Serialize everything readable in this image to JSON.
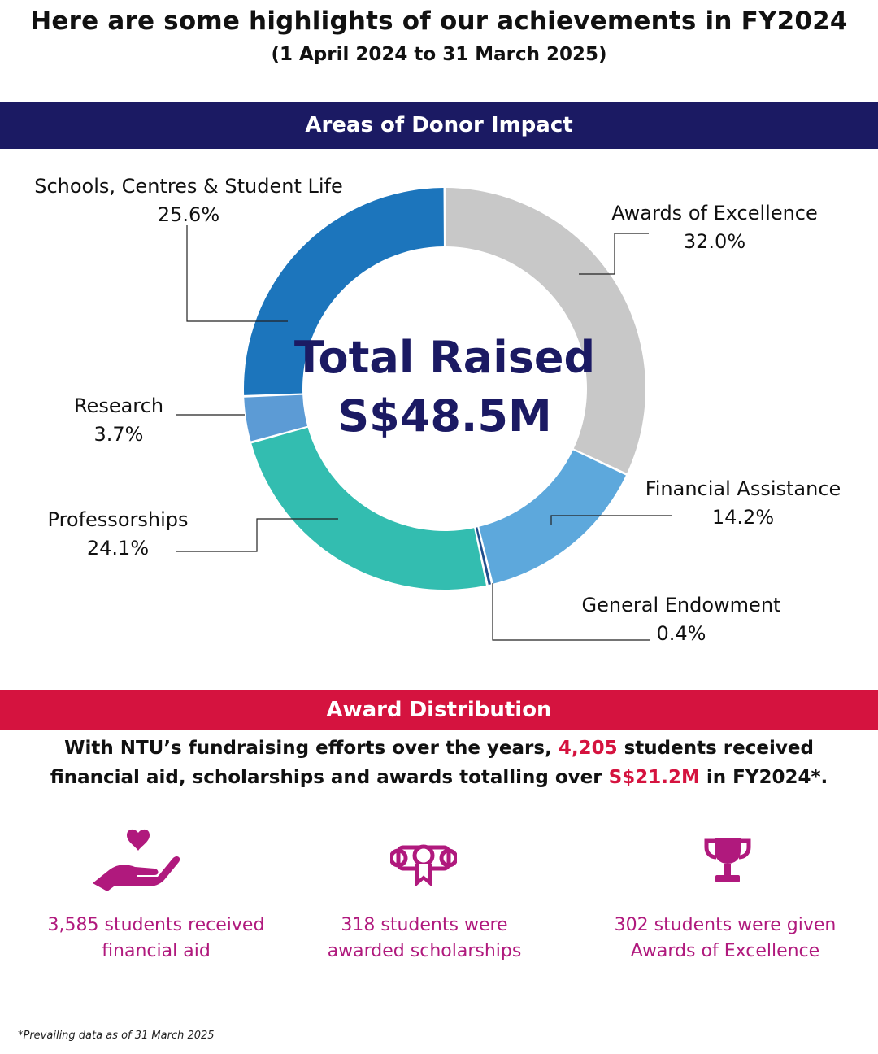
{
  "header": {
    "title": "Here are some highlights of our achievements in FY2024",
    "subtitle": "(1 April 2024 to 31 March 2025)"
  },
  "donor_section": {
    "heading": "Areas of Donor Impact",
    "center_line1": "Total Raised",
    "center_line2": "S$48.5M"
  },
  "chart_data": {
    "type": "pie",
    "title": "Areas of Donor Impact",
    "center_text": "Total Raised S$48.5M",
    "categories": [
      "Awards of Excellence",
      "Financial Assistance",
      "General Endowment",
      "Professorships",
      "Research",
      "Schools, Centres & Student Life"
    ],
    "values": [
      32.0,
      14.2,
      0.4,
      24.1,
      3.7,
      25.6
    ],
    "value_labels": [
      "32.0%",
      "14.2%",
      "0.4%",
      "24.1%",
      "3.7%",
      "25.6%"
    ],
    "unit": "%",
    "colors": [
      "#c8c8c8",
      "#5da8dc",
      "#1f4e8c",
      "#33bdb0",
      "#5c9bd5",
      "#1c75bc"
    ]
  },
  "award_section": {
    "heading": "Award Distribution",
    "line1_pre": "With NTU’s fundraising efforts over the years, ",
    "line1_highlight": "4,205",
    "line1_post": " students received",
    "line2_pre": "financial aid, scholarships and awards totalling over ",
    "line2_highlight": "S$21.2M",
    "line2_post": " in FY2024*.",
    "stats": [
      {
        "line1": "3,585 students received",
        "line2": "financial aid",
        "icon": "heart-hand-icon"
      },
      {
        "line1": "318 students were",
        "line2": "awarded scholarships",
        "icon": "scholarship-scroll-icon"
      },
      {
        "line1": "302 students were given",
        "line2": "Awards of Excellence",
        "icon": "trophy-icon"
      }
    ]
  },
  "footnote": "*Prevailing data as of 31 March 2025",
  "colors": {
    "navy": "#1b1a63",
    "red": "#d5133f",
    "magenta": "#b0197d"
  }
}
